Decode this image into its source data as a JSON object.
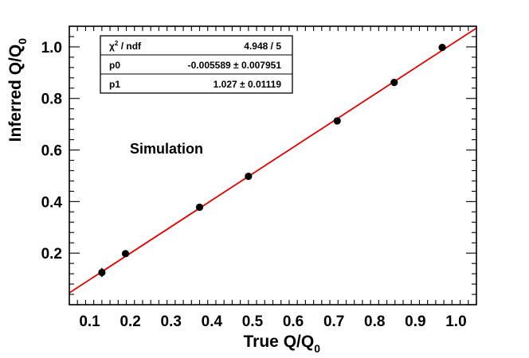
{
  "chart_data": {
    "type": "scatter",
    "xlabel": "True Q/Q",
    "xlabel_sub": "0",
    "ylabel": "Inferred Q/Q",
    "ylabel_sub": "0",
    "xlim": [
      0.05,
      1.05
    ],
    "ylim": [
      0.0,
      1.08
    ],
    "x_ticks": [
      "0.1",
      "0.2",
      "0.3",
      "0.4",
      "0.5",
      "0.6",
      "0.7",
      "0.8",
      "0.9",
      "1.0"
    ],
    "y_ticks": [
      "0.2",
      "0.4",
      "0.6",
      "0.8",
      "1.0"
    ],
    "grid": false,
    "annotation": "Simulation",
    "marker_color": "#000000",
    "fit_color": "#e00000",
    "points": [
      {
        "x": 0.13,
        "y": 0.125,
        "yerr": 0.018
      },
      {
        "x": 0.188,
        "y": 0.198,
        "yerr": 0.008
      },
      {
        "x": 0.37,
        "y": 0.378,
        "yerr": 0.006
      },
      {
        "x": 0.49,
        "y": 0.498,
        "yerr": 0.006
      },
      {
        "x": 0.708,
        "y": 0.713,
        "yerr": 0.006
      },
      {
        "x": 0.848,
        "y": 0.862,
        "yerr": 0.006
      },
      {
        "x": 0.966,
        "y": 0.998,
        "yerr": 0.006
      }
    ],
    "fit": {
      "p0": -0.005589,
      "p1": 1.027
    },
    "stats_box": {
      "rows": [
        {
          "label_main": "χ",
          "label_sup": "2",
          "label_rest": " / ndf",
          "value": "4.948 / 5"
        },
        {
          "label_main": "p0",
          "value": "-0.005589 ± 0.007951"
        },
        {
          "label_main": "p1",
          "value": "1.027 ± 0.01119"
        }
      ]
    }
  }
}
